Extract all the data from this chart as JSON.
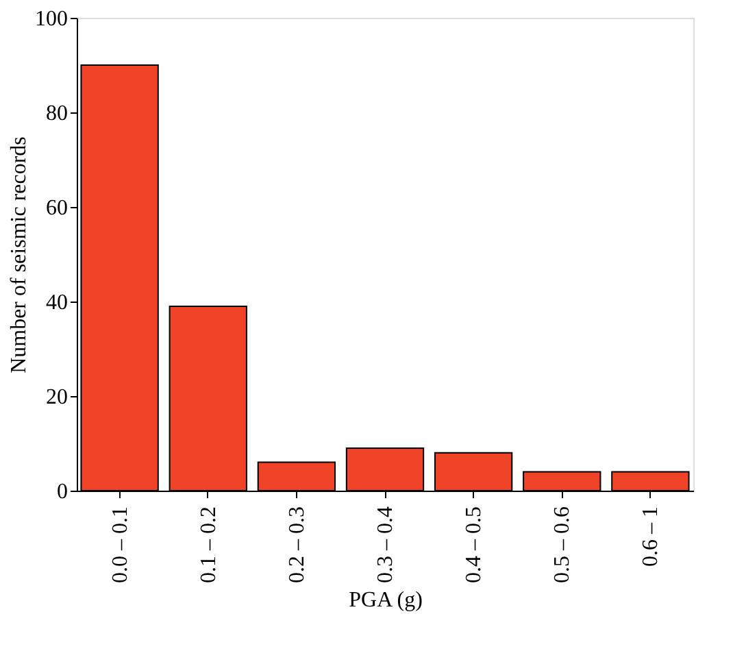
{
  "chart_data": {
    "type": "bar",
    "xlabel": "PGA (g)",
    "ylabel": "Number of seismic records",
    "categories": [
      "0.0 – 0.1",
      "0.1 – 0.2",
      "0.2 – 0.3",
      "0.3 – 0.4",
      "0.4 – 0.5",
      "0.5 – 0.6",
      "0.6 – 1"
    ],
    "values": [
      90,
      39,
      6,
      9,
      8,
      4,
      4
    ],
    "color": "#ee4327",
    "ylim": [
      0,
      100
    ],
    "yticks": [
      0,
      20,
      40,
      60,
      80,
      100
    ],
    "grid": false
  }
}
